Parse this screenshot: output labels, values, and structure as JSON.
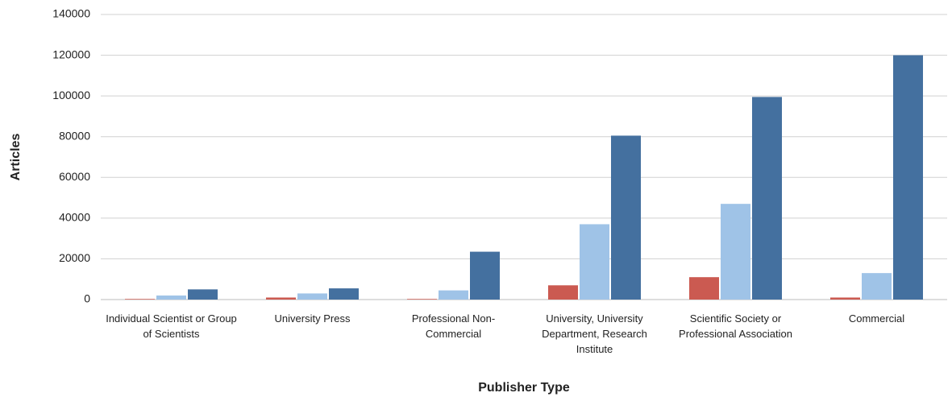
{
  "chart_data": {
    "type": "bar",
    "x_label": "Publisher Type",
    "y_label": "Articles",
    "categories": [
      "Individual Scientist or Group of Scientists",
      "University Press",
      "Professional Non-Commercial",
      "University, University Department, Research Institute",
      "Scientific Society or Professional Association",
      "Commercial"
    ],
    "series": [
      {
        "color": "#cb5a51",
        "values": [
          300,
          1000,
          300,
          7000,
          11000,
          1000
        ]
      },
      {
        "color": "#9fc3e7",
        "values": [
          2000,
          3000,
          4500,
          37000,
          47000,
          13000
        ]
      },
      {
        "color": "#44709f",
        "values": [
          5000,
          5500,
          23500,
          80500,
          99500,
          120000
        ]
      }
    ],
    "ylim": [
      0,
      140000
    ],
    "yticks": [
      0,
      20000,
      40000,
      60000,
      80000,
      100000,
      120000,
      140000
    ],
    "grid": true
  }
}
